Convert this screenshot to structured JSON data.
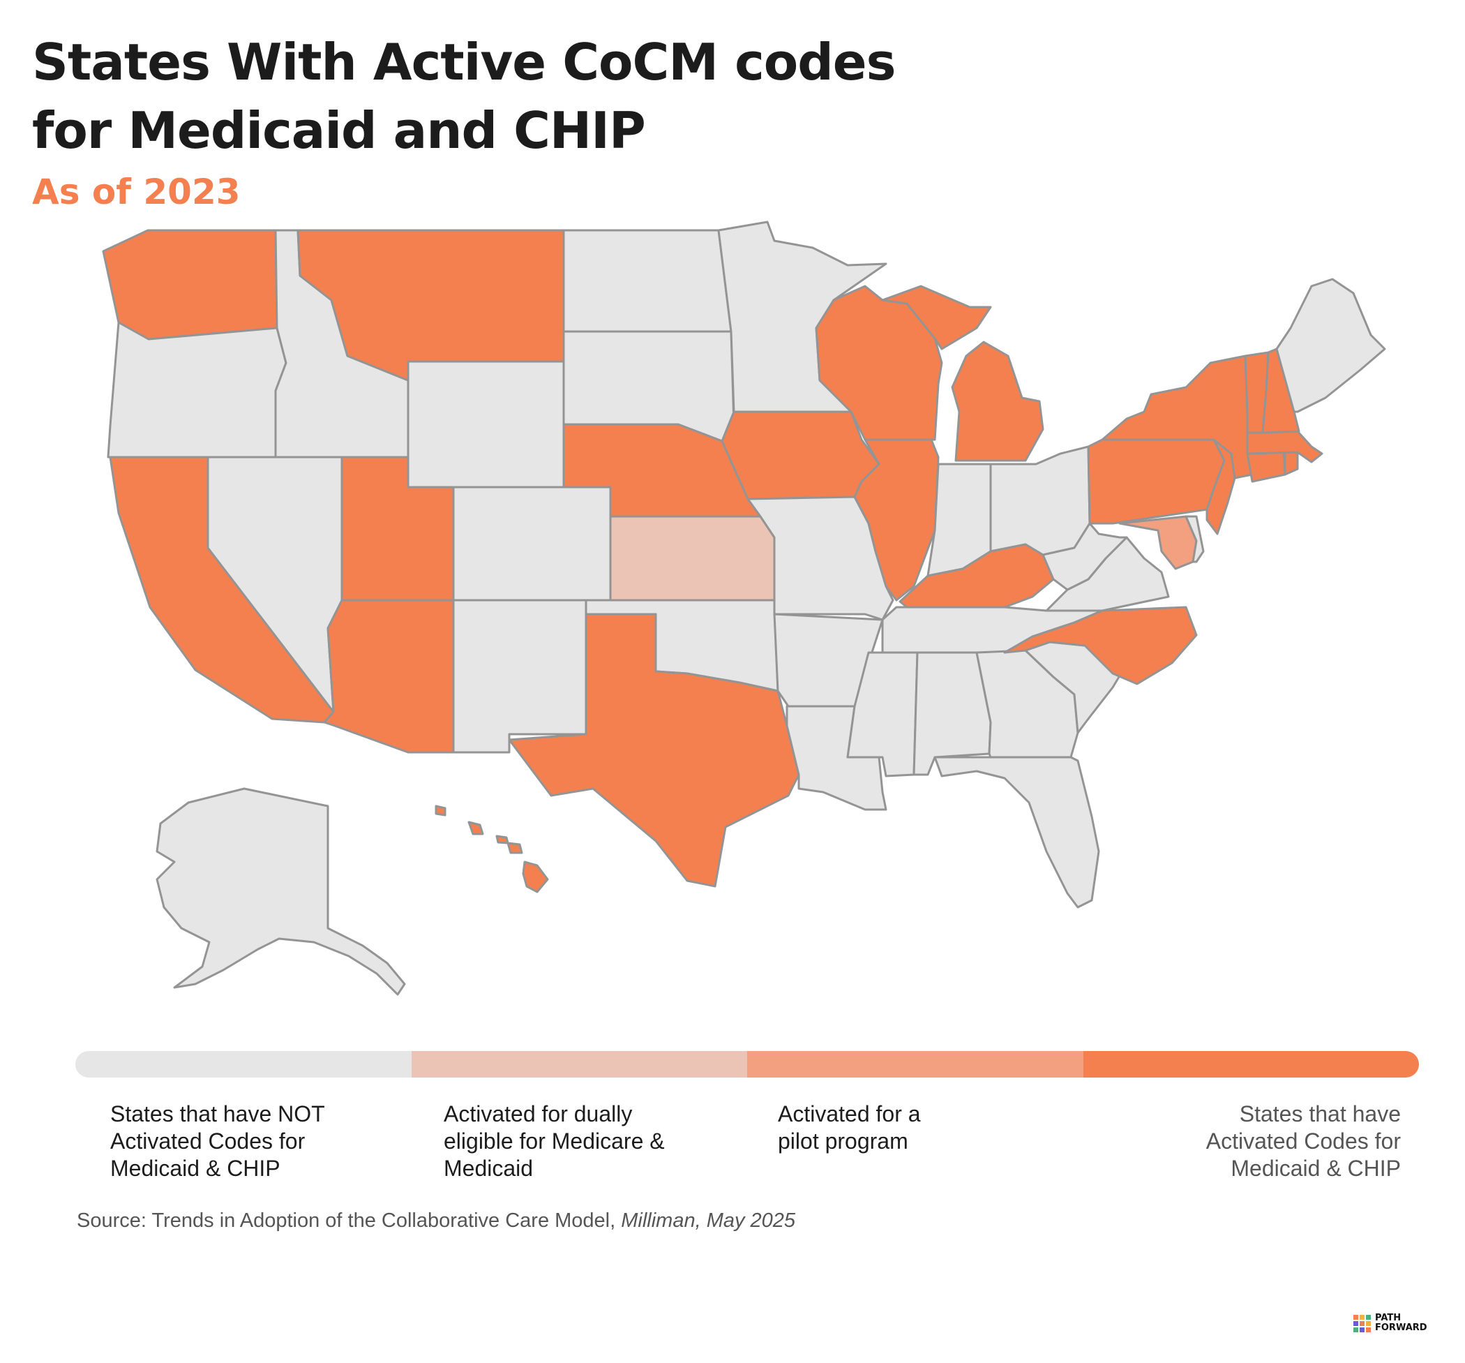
{
  "header": {
    "title_line1": "States With Active CoCM codes",
    "title_line2": "for Medicaid and CHIP",
    "subtitle": "As of 2023"
  },
  "colors": {
    "not_activated": "#e6e6e6",
    "dual_eligible": "#ecc4b5",
    "pilot": "#f2a07f",
    "activated": "#f5804f",
    "border": "#949494"
  },
  "map": {
    "activated_states": [
      "WA",
      "MT",
      "CA",
      "UT",
      "AZ",
      "TX",
      "NE",
      "IA",
      "WI",
      "MI",
      "IL",
      "KY",
      "NC",
      "NY",
      "PA",
      "NJ",
      "VT",
      "NH",
      "MA",
      "CT",
      "RI",
      "HI"
    ],
    "dual_eligible_states": [
      "KS"
    ],
    "pilot_states": [
      "MD"
    ],
    "not_activated_states": [
      "OR",
      "ID",
      "NV",
      "WY",
      "CO",
      "NM",
      "ND",
      "SD",
      "OK",
      "MN",
      "MO",
      "AR",
      "LA",
      "MS",
      "AL",
      "GA",
      "FL",
      "SC",
      "TN",
      "IN",
      "OH",
      "WV",
      "VA",
      "DE",
      "ME",
      "AK"
    ]
  },
  "legend": {
    "items": [
      {
        "label": "States that have NOT Activated Codes for Medicaid & CHIP"
      },
      {
        "label": "Activated for dually eligible for Medicare & Medicaid"
      },
      {
        "label": "Activated for a pilot program"
      },
      {
        "label": "States that have Activated Codes for Medicaid & CHIP"
      }
    ],
    "label0_lines": [
      "States that have NOT",
      "Activated Codes for",
      "Medicaid & CHIP"
    ],
    "label1_lines": [
      "Activated for dually",
      "eligible for Medicare &",
      "Medicaid"
    ],
    "label2_lines": [
      "Activated for a",
      "pilot program"
    ],
    "label3_lines": [
      "States that have",
      "Activated Codes for",
      "Medicaid & CHIP"
    ]
  },
  "source": {
    "prefix": "Source: Trends in Adoption of the Collaborative Care Model, ",
    "italic": "Milliman, May 2025"
  },
  "logo": {
    "line1": "PATH",
    "line2": "FORWARD"
  }
}
